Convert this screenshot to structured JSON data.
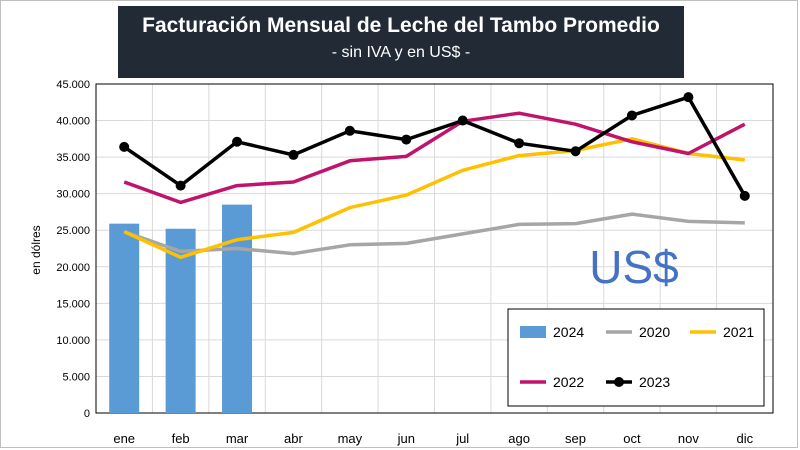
{
  "title": "Facturación Mensual de Leche del Tambo Promedio",
  "subtitle": "- sin IVA y en US$ -",
  "watermark": "US$",
  "chart_data": {
    "type": "bar+line",
    "title": "Facturación Mensual de Leche del Tambo Promedio",
    "subtitle": "- sin IVA y en US$ -",
    "xlabel": "",
    "ylabel": "en dólres",
    "ylim": [
      0,
      45000
    ],
    "yticks": [
      0,
      5000,
      10000,
      15000,
      20000,
      25000,
      30000,
      35000,
      40000,
      45000
    ],
    "ytick_labels": [
      "0",
      "5.000",
      "10.000",
      "15.000",
      "20.000",
      "25.000",
      "30.000",
      "35.000",
      "40.000",
      "45.000"
    ],
    "grid": true,
    "legend_position": "bottom-right",
    "categories": [
      "ene",
      "feb",
      "mar",
      "abr",
      "may",
      "jun",
      "jul",
      "ago",
      "sep",
      "oct",
      "nov",
      "dic"
    ],
    "series": [
      {
        "name": "2024",
        "kind": "bar",
        "color": "#5b9bd5",
        "values": [
          25900,
          25200,
          28500,
          null,
          null,
          null,
          null,
          null,
          null,
          null,
          null,
          null
        ]
      },
      {
        "name": "2020",
        "kind": "line",
        "color": "#a6a6a6",
        "marker": false,
        "values": [
          24800,
          22100,
          22500,
          21800,
          23000,
          23200,
          24500,
          25800,
          25900,
          27200,
          26200,
          26000
        ]
      },
      {
        "name": "2021",
        "kind": "line",
        "color": "#ffc000",
        "marker": false,
        "values": [
          24800,
          21300,
          23700,
          24700,
          28100,
          29800,
          33200,
          35200,
          35900,
          37500,
          35500,
          34600
        ]
      },
      {
        "name": "2022",
        "kind": "line",
        "color": "#c0136c",
        "marker": false,
        "values": [
          31600,
          28800,
          31100,
          31600,
          34500,
          35100,
          39900,
          41000,
          39500,
          37100,
          35500,
          39500
        ]
      },
      {
        "name": "2023",
        "kind": "line",
        "color": "#000000",
        "marker": true,
        "values": [
          36400,
          31100,
          37100,
          35300,
          38600,
          37400,
          40000,
          36900,
          35800,
          40700,
          43200,
          29700
        ]
      }
    ]
  }
}
